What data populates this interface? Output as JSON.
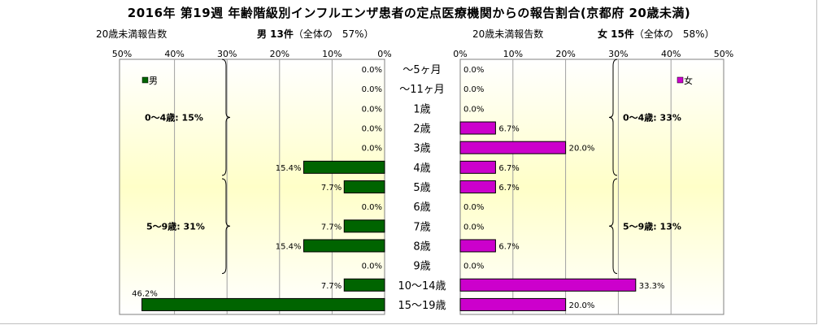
{
  "title": "2016年 第19週 年齢階級別インフルエンザ患者の定点医療機関からの報告割合(京都府 20歳未満)",
  "left_header": {
    "label": "20歳未満報告数",
    "summary_label": "男 13件",
    "summary_paren": "（全体の　57%）"
  },
  "right_header": {
    "label": "20歳未満報告数",
    "summary_label": "女 15件",
    "summary_paren": "（全体の　58%）"
  },
  "colors": {
    "male": "#006400",
    "female": "#cc00cc",
    "plot_top": "#ffffff",
    "plot_mid": "#ffffc8"
  },
  "chart_data": [
    {
      "type": "bar",
      "orientation": "horizontal",
      "direction": "right-to-left",
      "categories": [
        "～5ヶ月",
        "～11ヶ月",
        "1歳",
        "2歳",
        "3歳",
        "4歳",
        "5歳",
        "6歳",
        "7歳",
        "8歳",
        "9歳",
        "10～14歳",
        "15～19歳"
      ],
      "series": [
        {
          "name": "男",
          "values": [
            0.0,
            0.0,
            0.0,
            0.0,
            0.0,
            15.4,
            7.7,
            0.0,
            7.7,
            15.4,
            0.0,
            7.7,
            46.2
          ]
        }
      ],
      "value_labels": [
        "0.0%",
        "0.0%",
        "0.0%",
        "0.0%",
        "0.0%",
        "15.4%",
        "7.7%",
        "0.0%",
        "7.7%",
        "15.4%",
        "0.0%",
        "7.7%",
        "46.2%"
      ],
      "xlim": [
        0,
        50
      ],
      "x_ticks": [
        "50%",
        "40%",
        "30%",
        "20%",
        "10%",
        "0%"
      ],
      "groups": [
        {
          "label": "0～4歳: 15%"
        },
        {
          "label": "5～9歳: 31%"
        }
      ],
      "legend": "top-left",
      "grid": true
    },
    {
      "type": "bar",
      "orientation": "horizontal",
      "direction": "left-to-right",
      "categories": [
        "～5ヶ月",
        "～11ヶ月",
        "1歳",
        "2歳",
        "3歳",
        "4歳",
        "5歳",
        "6歳",
        "7歳",
        "8歳",
        "9歳",
        "10～14歳",
        "15～19歳"
      ],
      "series": [
        {
          "name": "女",
          "values": [
            0.0,
            0.0,
            0.0,
            6.7,
            20.0,
            6.7,
            6.7,
            0.0,
            0.0,
            6.7,
            0.0,
            33.3,
            20.0
          ]
        }
      ],
      "value_labels": [
        "0.0%",
        "0.0%",
        "0.0%",
        "6.7%",
        "20.0%",
        "6.7%",
        "6.7%",
        "0.0%",
        "0.0%",
        "6.7%",
        "0.0%",
        "33.3%",
        "20.0%"
      ],
      "xlim": [
        0,
        50
      ],
      "x_ticks": [
        "0%",
        "10%",
        "20%",
        "30%",
        "40%",
        "50%"
      ],
      "groups": [
        {
          "label": "0～4歳: 33%"
        },
        {
          "label": "5～9歳: 13%"
        }
      ],
      "legend": "top-right",
      "grid": true
    }
  ]
}
